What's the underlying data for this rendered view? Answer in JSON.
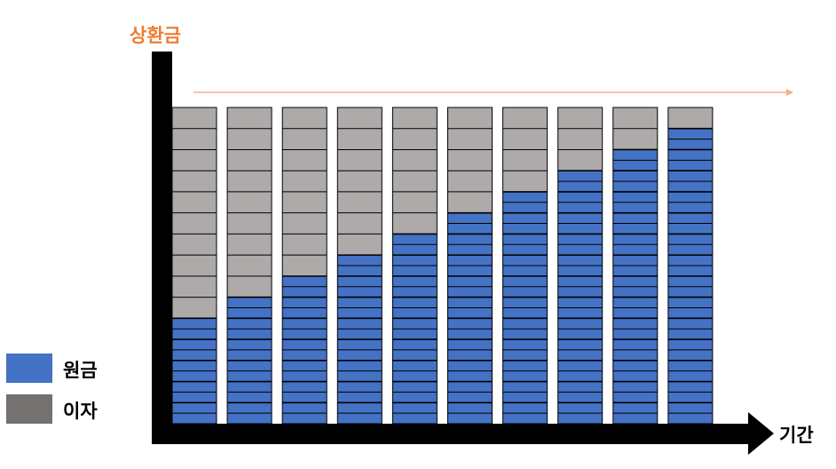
{
  "chart_data": {
    "type": "bar",
    "stacked": true,
    "title": "",
    "ylabel": "상환금",
    "xlabel": "기간",
    "categories": [
      "",
      "",
      "",
      "",
      "",
      "",
      "",
      "",
      "",
      ""
    ],
    "series": [
      {
        "name": "원금",
        "values": [
          5,
          6,
          7,
          8,
          9,
          10,
          11,
          12,
          13,
          14
        ],
        "color": "#4472C4"
      },
      {
        "name": "이자",
        "values": [
          10,
          9,
          8,
          7,
          6,
          5,
          4,
          3,
          2,
          1
        ],
        "color": "#AEAAAA"
      }
    ],
    "ylim": [
      0,
      15
    ],
    "grid": false,
    "legend_position": "bottom-left",
    "reference_line": {
      "color": "#F4B183",
      "style": "arrow"
    },
    "colors": {
      "principal": "#4472C4",
      "interest": "#AEAAAA",
      "legend_interest_swatch": "#767171",
      "axis": "#000000",
      "ylabel": "#ED7D31"
    }
  },
  "legend": {
    "items": [
      {
        "label": "원금",
        "color": "#4472C4"
      },
      {
        "label": "이자",
        "color": "#767171"
      }
    ]
  }
}
